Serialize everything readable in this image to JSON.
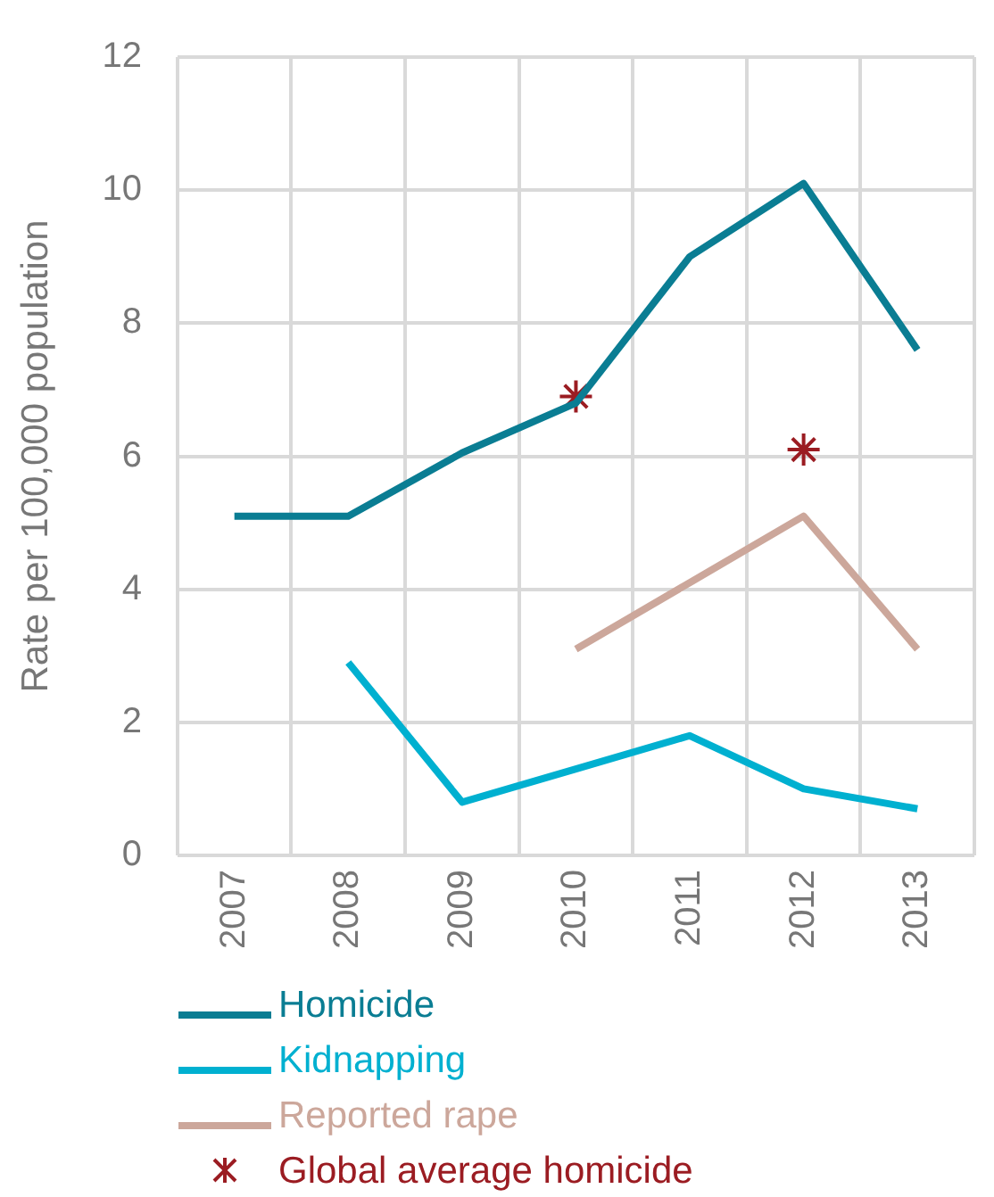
{
  "chart_data": {
    "type": "line",
    "ylabel": "Rate per 100,000 population",
    "categories": [
      "2007",
      "2008",
      "2009",
      "2010",
      "2011",
      "2012",
      "2013"
    ],
    "series": [
      {
        "name": "Homicide",
        "color": "#0a7d93",
        "values": [
          5.1,
          5.1,
          6.05,
          6.8,
          9.0,
          10.1,
          7.6
        ]
      },
      {
        "name": "Kidnapping",
        "color": "#00b0d0",
        "values": [
          null,
          2.9,
          0.8,
          1.3,
          1.8,
          1.0,
          0.7
        ]
      },
      {
        "name": "Reported rape",
        "color": "#cca79b",
        "values": [
          null,
          null,
          null,
          3.1,
          4.1,
          5.1,
          3.1
        ]
      },
      {
        "name": "Global average homicide",
        "type": "scatter",
        "marker": "cross",
        "color": "#9b1c22",
        "values": [
          null,
          null,
          null,
          6.9,
          null,
          6.1,
          null
        ]
      }
    ],
    "ylim": [
      0,
      12
    ],
    "yticks": [
      0,
      2,
      4,
      6,
      8,
      10,
      12
    ],
    "grid": true,
    "legend": "bottom left",
    "marker": "none",
    "line_style": "solid"
  }
}
